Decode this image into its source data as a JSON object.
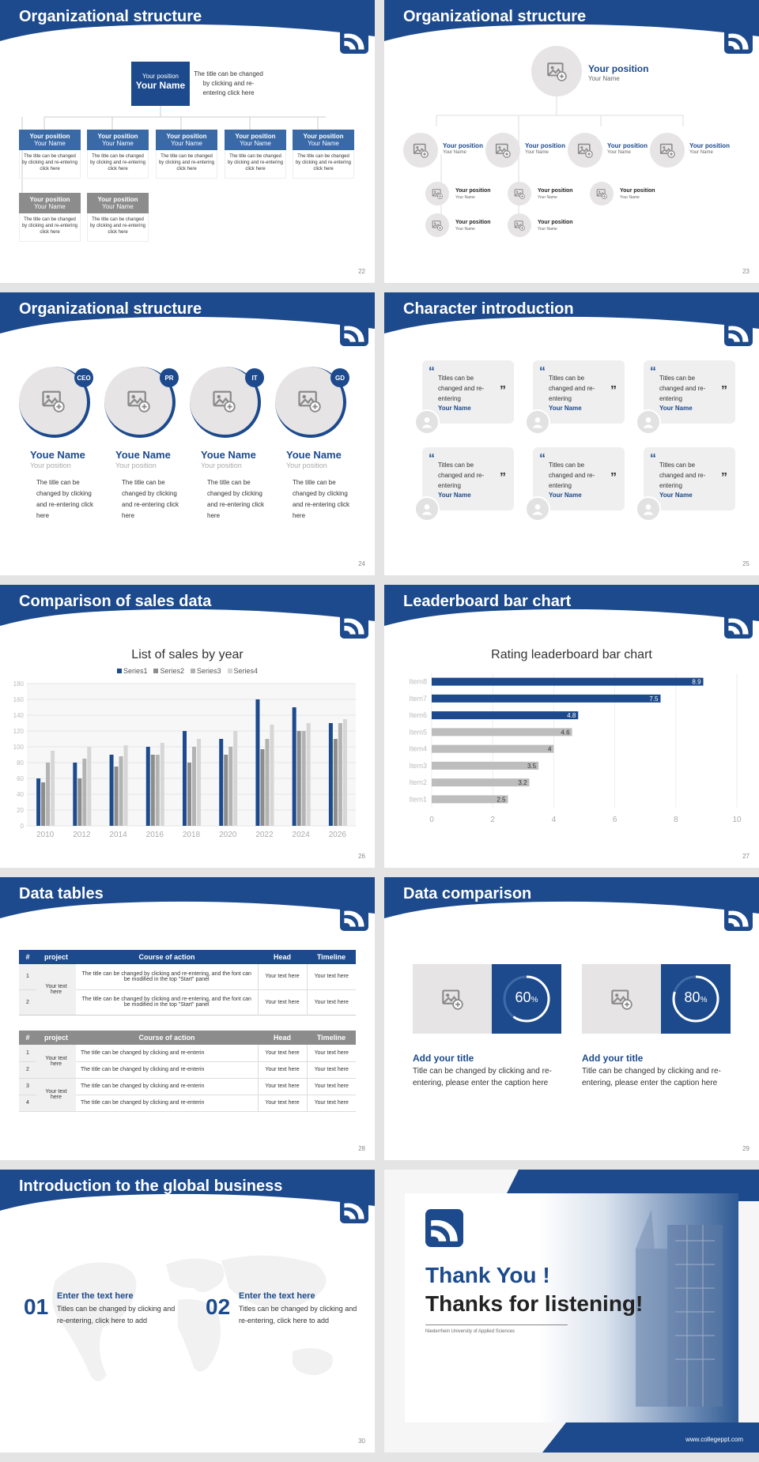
{
  "colors": {
    "primary": "#1c4a8c",
    "gray": "#8c8c8c",
    "light": "#e6e4e4"
  },
  "s22": {
    "title": "Organizational structure",
    "page": "22",
    "top": {
      "position": "Your position",
      "name": "Your Name",
      "desc": "The title can be changed by clicking and re-entering click here"
    },
    "boxes": [
      {
        "position": "Your position",
        "name": "Your Name",
        "desc": "The title can be changed by clicking and re-entering click here"
      },
      {
        "position": "Your position",
        "name": "Your Name",
        "desc": "The title can be changed by clicking and re-entering click here"
      },
      {
        "position": "Your position",
        "name": "Your Name",
        "desc": "The title can be changed by clicking and re-entering click here"
      },
      {
        "position": "Your position",
        "name": "Your Name",
        "desc": "The title can be changed by clicking and re-entering click here"
      },
      {
        "position": "Your position",
        "name": "Your Name",
        "desc": "The title can be changed by clicking and re-entering click here"
      },
      {
        "position": "Your position",
        "name": "Your Name",
        "desc": "The title can be changed by clicking and re-entering click here"
      },
      {
        "position": "Your position",
        "name": "Your Name",
        "desc": "The title can be changed by clicking and re-entering click here"
      }
    ]
  },
  "s23": {
    "title": "Organizational structure",
    "page": "23",
    "top": {
      "position": "Your position",
      "name": "Your Name"
    },
    "mid": [
      {
        "position": "Your position",
        "name": "Your Name"
      },
      {
        "position": "Your position",
        "name": "Your Name"
      },
      {
        "position": "Your position",
        "name": "Your Name"
      },
      {
        "position": "Your position",
        "name": "Your Name"
      }
    ],
    "sub": [
      {
        "position": "Your position",
        "name": "Your Name"
      },
      {
        "position": "Your position",
        "name": "Your Name"
      },
      {
        "position": "Your position",
        "name": "Your Name"
      },
      {
        "position": "Your position",
        "name": "Your Name"
      },
      {
        "position": "Your position",
        "name": "Your Name"
      }
    ]
  },
  "s24": {
    "title": "Organizational structure",
    "page": "24",
    "people": [
      {
        "badge": "CEO",
        "name": "Youe Name",
        "position": "Your position",
        "desc": "The title can be changed by clicking and re-entering click here"
      },
      {
        "badge": "PR",
        "name": "Youe Name",
        "position": "Your position",
        "desc": "The title can be changed by clicking and re-entering click here"
      },
      {
        "badge": "IT",
        "name": "Youe Name",
        "position": "Your position",
        "desc": "The title can be changed by clicking and re-entering click here"
      },
      {
        "badge": "GD",
        "name": "Youe Name",
        "position": "Your position",
        "desc": "The title can be changed by clicking and re-entering click here"
      }
    ]
  },
  "s25": {
    "title": "Character introduction",
    "page": "25",
    "quote_open": "“",
    "quote_close": "”",
    "cards": [
      {
        "text": "Titles can be changed and re-entering",
        "name": "Your Name"
      },
      {
        "text": "Titles can be changed and re-entering",
        "name": "Your Name"
      },
      {
        "text": "Titles can be changed and re-entering",
        "name": "Your Name"
      },
      {
        "text": "Titles can be changed and re-entering",
        "name": "Your Name"
      },
      {
        "text": "Titles can be changed and re-entering",
        "name": "Your Name"
      },
      {
        "text": "Titles can be changed and re-entering",
        "name": "Your Name"
      }
    ]
  },
  "s26": {
    "title": "Comparison of sales data",
    "page": "26"
  },
  "s27": {
    "title": "Leaderboard bar chart",
    "page": "27"
  },
  "chart_data": [
    {
      "type": "bar",
      "title": "List of sales by year",
      "categories": [
        "2010",
        "2012",
        "2014",
        "2016",
        "2018",
        "2020",
        "2022",
        "2024",
        "2026"
      ],
      "series": [
        {
          "name": "Series1",
          "color": "#1c4a8c",
          "values": [
            60,
            80,
            90,
            100,
            120,
            110,
            160,
            150,
            130
          ]
        },
        {
          "name": "Series2",
          "color": "#8c8c8c",
          "values": [
            55,
            60,
            75,
            90,
            80,
            90,
            97,
            120,
            110
          ]
        },
        {
          "name": "Series3",
          "color": "#b3b3b3",
          "values": [
            80,
            85,
            88,
            90,
            100,
            100,
            110,
            120,
            130
          ]
        },
        {
          "name": "Series4",
          "color": "#d6d6d6",
          "values": [
            95,
            100,
            102,
            105,
            110,
            120,
            128,
            130,
            135
          ]
        }
      ],
      "ylim": [
        0,
        180
      ],
      "yticks": [
        0,
        20,
        40,
        60,
        80,
        100,
        120,
        140,
        160,
        180
      ],
      "legend": "top"
    },
    {
      "type": "bar",
      "orientation": "horizontal",
      "title": "Rating leaderboard bar chart",
      "categories": [
        "Item8",
        "Item7",
        "Item6",
        "Item5",
        "Item4",
        "Item3",
        "Item2",
        "Item1"
      ],
      "values": [
        8.9,
        7.5,
        4.8,
        4.6,
        4,
        3.5,
        3.2,
        2.5
      ],
      "labels": [
        "8.9",
        "7.5",
        "4.8",
        "4.6",
        "4",
        "3.5",
        "3.2",
        "2.5"
      ],
      "xlim": [
        0,
        10
      ],
      "xticks": [
        "0",
        "2",
        "4",
        "6",
        "8",
        "10"
      ]
    }
  ],
  "s28": {
    "title": "Data tables",
    "page": "28",
    "t1": {
      "headers": [
        "#",
        "project",
        "Course of action",
        "Head",
        "Timeline"
      ],
      "project": "Your text here",
      "rows": [
        {
          "n": "1",
          "action": "The title can be changed by clicking and re-entering, and the font can be modified in the top \"Start\" panel",
          "head": "Your text here",
          "time": "Your text here"
        },
        {
          "n": "2",
          "action": "The title can be changed by clicking and re-entering, and the font can be modified in the top \"Start\" panel",
          "head": "Your text here",
          "time": "Your text here"
        }
      ]
    },
    "t2": {
      "headers": [
        "#",
        "project",
        "Course of action",
        "Head",
        "Timeline"
      ],
      "project1": "Your text here",
      "project2": "Your text here",
      "rows": [
        {
          "n": "1",
          "action": "The title can be changed by clicking and re-enterin",
          "head": "Your text here",
          "time": "Your text here"
        },
        {
          "n": "2",
          "action": "The title can be changed by clicking and re-enterin",
          "head": "Your text here",
          "time": "Your text here"
        },
        {
          "n": "3",
          "action": "The title can be changed by clicking and re-enterin",
          "head": "Your text here",
          "time": "Your text here"
        },
        {
          "n": "4",
          "action": "The title can be changed by clicking and re-enterin",
          "head": "Your text here",
          "time": "Your text here"
        }
      ]
    }
  },
  "s29": {
    "title": "Data comparison",
    "page": "29",
    "items": [
      {
        "pct": "60",
        "pct_value": 0.6,
        "unit": "%",
        "title": "Add your title",
        "desc": "Title can be changed by clicking and re-entering, please enter the caption here"
      },
      {
        "pct": "80",
        "pct_value": 0.8,
        "unit": "%",
        "title": "Add your title",
        "desc": "Title can be changed by clicking and re-entering, please enter the caption here"
      }
    ]
  },
  "s30": {
    "title": "Introduction to the global business",
    "page": "30",
    "items": [
      {
        "num": "01",
        "head": "Enter the text here",
        "desc": "Titles can be changed by clicking and re-entering, click here to add"
      },
      {
        "num": "02",
        "head": "Enter the text here",
        "desc": "Titles can be changed by clicking and re-entering, click here to add"
      }
    ]
  },
  "s31": {
    "thanks": "Thank You !",
    "listening": "Thanks for listening!",
    "university": "Niederrhein University of Applied Sciences",
    "url": "www.collegeppt.com"
  }
}
